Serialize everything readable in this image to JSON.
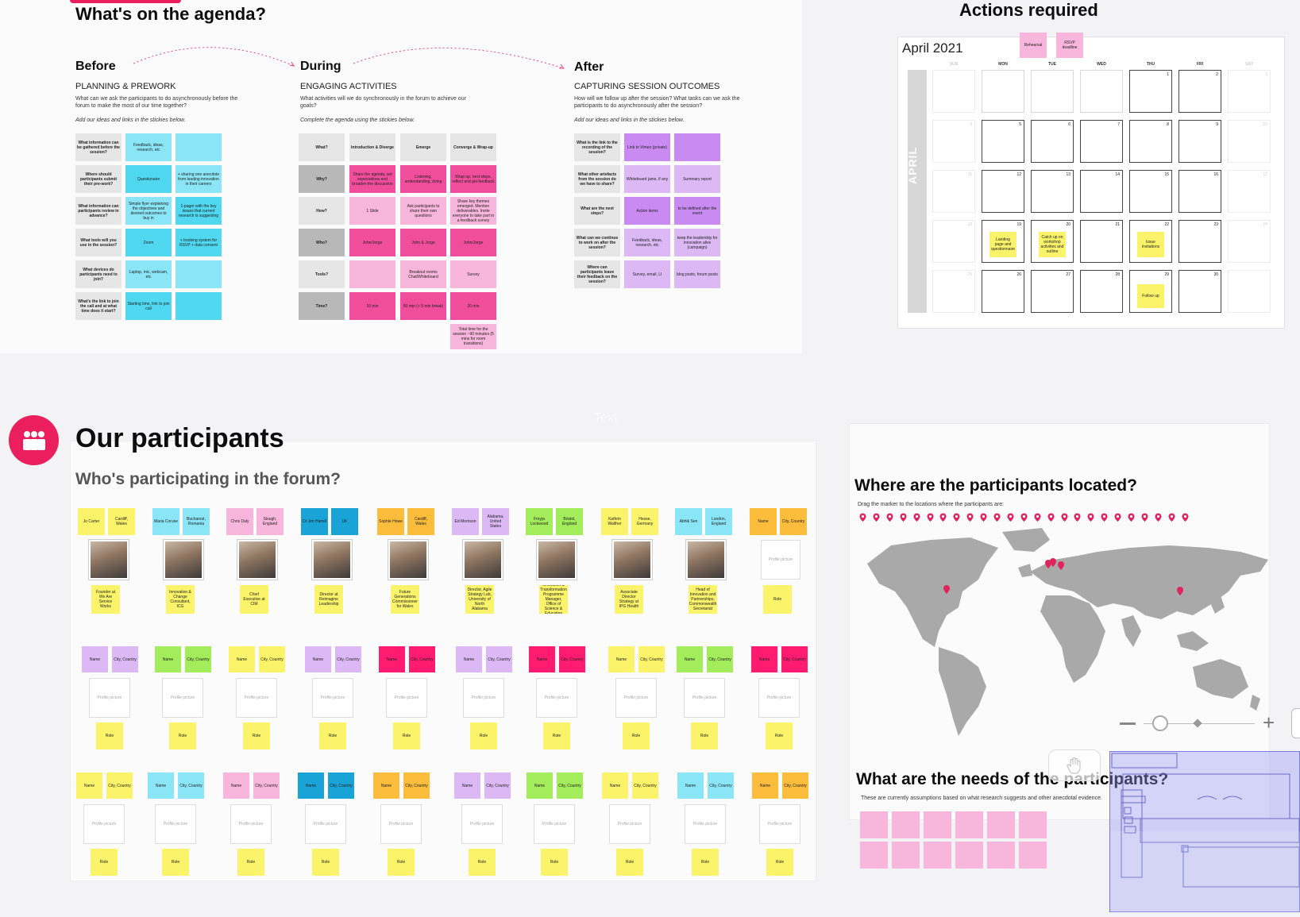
{
  "agenda": {
    "title": "What's on the agenda?",
    "before": {
      "title": "Before",
      "subtitle": "PLANNING & PREWORK",
      "desc": "What can we ask the participants to do asynchronously before the forum to make the most of our time together?",
      "hint": "Add our ideas and links in the stickies below.",
      "rows": [
        [
          "What information can be gathered before the session?",
          "Feedback, ideas, research, etc",
          ""
        ],
        [
          "Where should participants submit their pre-work?",
          "Questionaire",
          "+ sharing one anecdote from leading innovation in their careers"
        ],
        [
          "What information can participants review in advance?",
          "Simple flyer explaining the objectives and desired outcomes to buy in",
          "1-pager with the key issues that current research is suggesting"
        ],
        [
          "What tools will you use in the session?",
          "Zoom",
          "+ booking system for RSVP + data consent"
        ],
        [
          "What devices do participants need to join?",
          "Laptop, mic, webcam, etc",
          ""
        ],
        [
          "What's the link to join the call and at what time does it start?",
          "Starting time, link to join call",
          ""
        ]
      ]
    },
    "during": {
      "title": "During",
      "subtitle": "ENGAGING ACTIVITIES",
      "desc": "What activities will we do synchronously in the forum to achieve our goals?",
      "hint": "Complete the agenda using the stickies below.",
      "header": [
        "What?",
        "Introduction & Diverge",
        "Emerge",
        "Converge & Wrap-up"
      ],
      "rows": [
        [
          "Why?",
          "Share the agenda, set expectations and broaden the discussion",
          "Listening, understanding, doing",
          "Wrap up, next steps, reflect and get feedback"
        ],
        [
          "How?",
          "1 Slide",
          "Ask participants to share their own questions",
          "Share key themes emerged. Mention deliverables. Invite everyone to take part in a feedback survey"
        ],
        [
          "Who?",
          "John/Jorge",
          "John & Jorge",
          "John/Jorge"
        ],
        [
          "Tools?",
          "",
          "Breakout rooms Chat/Whiteboard",
          "Survey"
        ],
        [
          "Time?",
          "10 min",
          "50 min (+ 5 min break)",
          "20 min"
        ]
      ],
      "total": "Total time for the session ~90 minutes (5 mins for room transitions)"
    },
    "after": {
      "title": "After",
      "subtitle": "CAPTURING SESSION OUTCOMES",
      "desc": "How will we follow up after the session? What tasks can we ask the participants to do asynchronously after the session?",
      "hint": "Add our ideas and links in the stickies below.",
      "rows": [
        [
          "What is the link to the recording of the session?",
          "Link to Vimeo (private)",
          ""
        ],
        [
          "What other artefacts from the session do we have to share?",
          "Whiteboard jams, if any",
          "Summary report"
        ],
        [
          "What are the next steps?",
          "Action items",
          "to be defined after the event"
        ],
        [
          "What can we continue to work on after the session?",
          "Feedback, ideas, research, etc",
          "keep the leadership for innovation alive (campaign)"
        ],
        [
          "Where can participants leave their feedback on the session?",
          "Survey, email, LI",
          "blog posts, forum posts"
        ]
      ]
    }
  },
  "actions": {
    "title": "Actions required",
    "month": "April 2021",
    "side_label": "APRIL",
    "legend": [
      "Rehearsal",
      "RSVP deadline"
    ],
    "weekdays": [
      "SUN",
      "MON",
      "TUE",
      "WED",
      "THU",
      "FRI",
      "SAT"
    ],
    "weeks": [
      [
        "",
        "",
        "",
        "",
        "1",
        "2",
        "3"
      ],
      [
        "4",
        "5",
        "6",
        "7",
        "8",
        "9",
        "10"
      ],
      [
        "11",
        "12",
        "13",
        "14",
        "15",
        "16",
        "17"
      ],
      [
        "18",
        "19",
        "20",
        "21",
        "22",
        "23",
        "24"
      ],
      [
        "25",
        "26",
        "27",
        "28",
        "29",
        "30",
        ""
      ]
    ],
    "events": {
      "landing": "Landing page and questionnaire",
      "catchup": "Catch up on workshop activities and outline",
      "issue": "Issue invitations",
      "followup": "Follow up"
    }
  },
  "participants": {
    "title": "Our participants",
    "subtitle": "Who's participating in the forum?",
    "people": [
      {
        "name": "Jo Carter",
        "loc": "Cardiff, Wales",
        "role": "Founder at We Are Service Works",
        "color": "#fbf46a",
        "color2": "#fbf46a"
      },
      {
        "name": "Maria Coruse",
        "loc": "Bucharest, Romania",
        "role": "Innovation & Change Consultant, ICG",
        "color": "#8ae6f6",
        "color2": "#8ae6f6"
      },
      {
        "name": "Chris Daly",
        "loc": "Slough, England",
        "role": "Chief Executive at CIM",
        "color": "#f9b6dd",
        "color2": "#f9b6dd"
      },
      {
        "name": "Dr Jim Hamill",
        "loc": "UK",
        "role": "Director at Reimagine Leadership",
        "color": "#1aa3d6",
        "color2": "#1aa3d6"
      },
      {
        "name": "Sophie Howe",
        "loc": "Cardiff, Wales",
        "role": "Future Generations Commissioner for Wales",
        "color": "#fdbd3c",
        "color2": "#fdbd3c"
      },
      {
        "name": "Ed Morrison",
        "loc": "Alabama, United States",
        "role": "Director, Agile Strategy Lab, University of North Alabama",
        "color": "#dcb9f5",
        "color2": "#dcb9f5"
      },
      {
        "name": "Freyja Lockwood",
        "loc": "Bristol, England",
        "role": "Digital Innovation & Transformation Programme Manager, Office of Science & Education Innovation",
        "color": "#a3ec5b",
        "color2": "#a3ec5b"
      },
      {
        "name": "Kathrin Walther",
        "loc": "Hesse, Germany",
        "role": "Associate Director Strategy at IPG Health",
        "color": "#fbf46a",
        "color2": "#fbf46a"
      },
      {
        "name": "Abhik Sen",
        "loc": "London, England",
        "role": "Head of Innovation and Partnerships, Commonwealth Secretariat",
        "color": "#8ae6f6",
        "color2": "#8ae6f6"
      },
      {
        "name": "Name",
        "loc": "City, Country",
        "role": "Role",
        "color": "#fdbd3c",
        "color2": "#fdbd3c"
      }
    ],
    "placeholder": {
      "name": "Name",
      "loc": "City, Country",
      "photo": "Profile picture",
      "role": "Role"
    },
    "row2_colors": [
      "#dcb9f5",
      "#a3ec5b",
      "#fbf46a",
      "#dcb9f5",
      "#ff1c70",
      "#dcb9f5",
      "#ff1c70",
      "#fbf46a",
      "#a3ec5b",
      "#ff1c70"
    ],
    "row3_colors": [
      "#fbf46a",
      "#8ae6f6",
      "#f9b6dd",
      "#1aa3d6",
      "#fdbd3c",
      "#dcb9f5",
      "#a3ec5b",
      "#fbf46a",
      "#8ae6f6",
      "#fdbd3c"
    ]
  },
  "locations": {
    "title": "Where are the participants located?",
    "hint": "Drag the marker to the locations where the participants are:"
  },
  "needs": {
    "title": "What are the needs of the participants?",
    "hint": "These are currently assumptions based on what research suggests and other anecdotal evidence."
  },
  "ghost_text": "Text",
  "colors": {
    "accent": "#ec1f5e",
    "pin": "#e0245e"
  }
}
